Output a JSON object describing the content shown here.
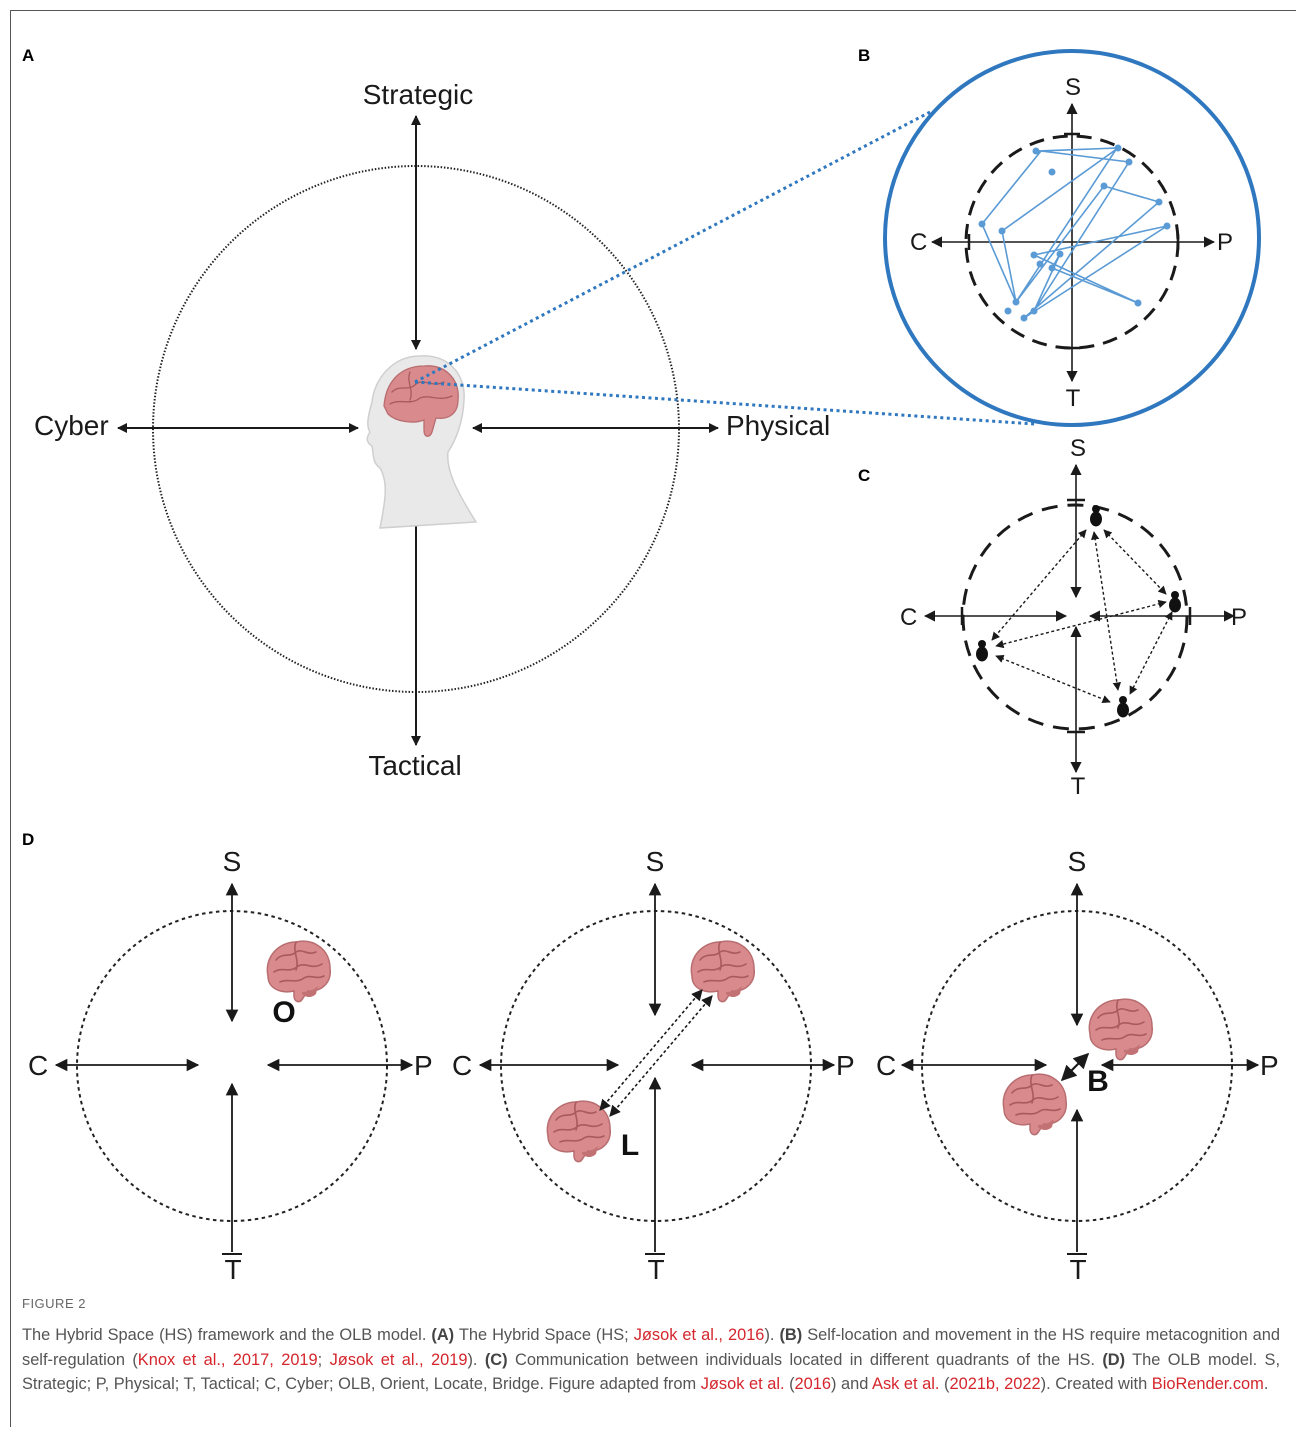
{
  "panels": {
    "A": {
      "label": "A",
      "axes": {
        "top": "Strategic",
        "bottom": "Tactical",
        "left": "Cyber",
        "right": "Physical"
      }
    },
    "B": {
      "label": "B",
      "axes": {
        "top": "S",
        "bottom": "T",
        "left": "C",
        "right": "P"
      }
    },
    "C": {
      "label": "C",
      "axes": {
        "top": "S",
        "bottom": "T",
        "left": "C",
        "right": "P"
      }
    },
    "D": {
      "label": "D",
      "subpanels": [
        {
          "letter": "O",
          "axes": {
            "top": "S",
            "bottom": "T",
            "left": "C",
            "right": "P"
          }
        },
        {
          "letter": "L",
          "axes": {
            "top": "S",
            "bottom": "T",
            "left": "C",
            "right": "P"
          }
        },
        {
          "letter": "B",
          "axes": {
            "top": "S",
            "bottom": "T",
            "left": "C",
            "right": "P"
          }
        }
      ]
    }
  },
  "colors": {
    "accent_blue": "#2f78bf",
    "trajectory_blue": "#5b9bd5",
    "brain_pink": "#d98a8c",
    "reference_red": "#d4262c",
    "caption_gray": "#555555"
  },
  "icons": [
    "brain-icon",
    "human-head-icon",
    "person-icon"
  ],
  "caption": {
    "figure_label": "FIGURE 2",
    "segments": [
      {
        "text": "The Hybrid Space (HS) framework and the OLB model. ",
        "style": "plain"
      },
      {
        "text": "(A)",
        "style": "bold"
      },
      {
        "text": " The Hybrid Space (HS; ",
        "style": "plain"
      },
      {
        "text": "Jøsok et al., 2016",
        "style": "ref"
      },
      {
        "text": "). ",
        "style": "plain"
      },
      {
        "text": "(B)",
        "style": "bold"
      },
      {
        "text": " Self-location and movement in the HS require metacognition and self-regulation (",
        "style": "plain"
      },
      {
        "text": "Knox et al., 2017, 2019",
        "style": "ref"
      },
      {
        "text": "; ",
        "style": "plain"
      },
      {
        "text": "Jøsok et al., 2019",
        "style": "ref"
      },
      {
        "text": "). ",
        "style": "plain"
      },
      {
        "text": "(C)",
        "style": "bold"
      },
      {
        "text": " Communication between individuals located in different quadrants of the HS. ",
        "style": "plain"
      },
      {
        "text": "(D)",
        "style": "bold"
      },
      {
        "text": " The OLB model. S, Strategic; P, Physical; T, Tactical; C, Cyber; OLB, Orient, Locate, Bridge. Figure adapted from ",
        "style": "plain"
      },
      {
        "text": "Jøsok et al.",
        "style": "ref"
      },
      {
        "text": " (",
        "style": "plain"
      },
      {
        "text": "2016",
        "style": "ref"
      },
      {
        "text": ") and ",
        "style": "plain"
      },
      {
        "text": "Ask et al.",
        "style": "ref"
      },
      {
        "text": " (",
        "style": "plain"
      },
      {
        "text": "2021b, 2022",
        "style": "ref"
      },
      {
        "text": "). Created with ",
        "style": "plain"
      },
      {
        "text": "BioRender.com",
        "style": "ref"
      },
      {
        "text": ".",
        "style": "plain"
      }
    ]
  }
}
